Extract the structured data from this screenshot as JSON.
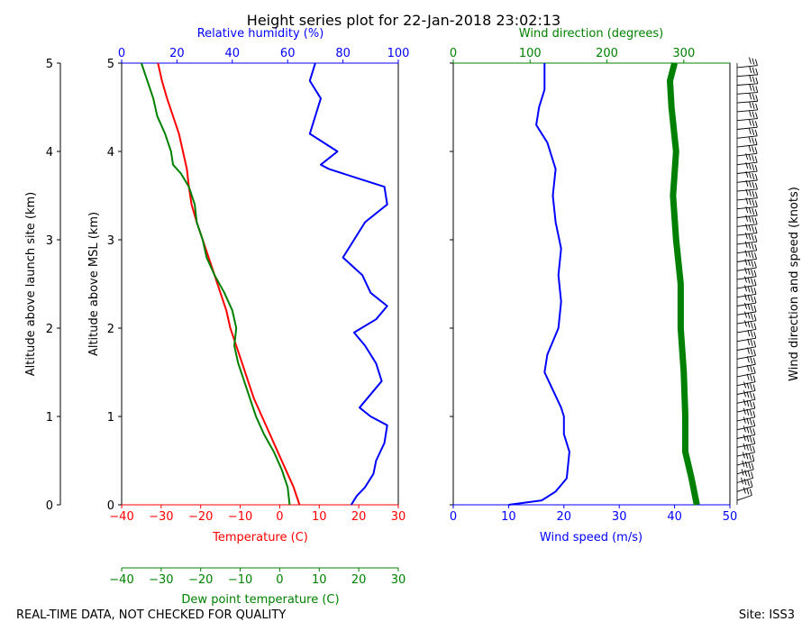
{
  "title": "Height series plot for 22-Jan-2018 23:02:13",
  "footer_left": "REAL-TIME DATA, NOT CHECKED FOR QUALITY",
  "footer_right": "Site: ISS3",
  "colors": {
    "temp": "#ff0000",
    "dew": "#008000",
    "rh": "#0000ff",
    "speed": "#0000ff",
    "dir": "#008000",
    "axis": "#000000"
  },
  "chart_data": [
    {
      "type": "line",
      "name": "thermo-panel",
      "ylabel_outer": "Altitude above launch site (km)",
      "ylabel_inner": "Altitude above MSL (km)",
      "ylim": [
        0,
        5
      ],
      "yticks": [
        "0",
        "1",
        "2",
        "3",
        "4",
        "5"
      ],
      "axes": {
        "temperature": {
          "label": "Temperature (C)",
          "lim": [
            -40,
            30
          ],
          "ticks": [
            "−40",
            "−30",
            "−20",
            "−10",
            "0",
            "10",
            "20",
            "30"
          ]
        },
        "dewpoint": {
          "label": "Dew point temperature (C)",
          "lim": [
            -40,
            30
          ],
          "ticks": [
            "−40",
            "−30",
            "−20",
            "−10",
            "0",
            "10",
            "20",
            "30"
          ]
        },
        "rh": {
          "label": "Relative humidity (%)",
          "lim": [
            0,
            100
          ],
          "ticks": [
            "0",
            "20",
            "40",
            "60",
            "80",
            "100"
          ]
        }
      },
      "series": [
        {
          "name": "Temperature",
          "axis": "temperature",
          "color": "#ff0000",
          "points": [
            [
              5.0,
              0
            ],
            [
              3.5,
              0.2
            ],
            [
              1.5,
              0.4
            ],
            [
              -0.5,
              0.6
            ],
            [
              -2.5,
              0.8
            ],
            [
              -4.5,
              1.0
            ],
            [
              -6.5,
              1.2
            ],
            [
              -8.0,
              1.4
            ],
            [
              -9.5,
              1.6
            ],
            [
              -11.0,
              1.8
            ],
            [
              -12.5,
              2.0
            ],
            [
              -13.5,
              2.2
            ],
            [
              -15.0,
              2.4
            ],
            [
              -16.5,
              2.6
            ],
            [
              -18.0,
              2.8
            ],
            [
              -19.5,
              3.0
            ],
            [
              -21.0,
              3.2
            ],
            [
              -22.3,
              3.4
            ],
            [
              -23.0,
              3.6
            ],
            [
              -23.5,
              3.8
            ],
            [
              -24.5,
              4.0
            ],
            [
              -25.5,
              4.2
            ],
            [
              -27.0,
              4.4
            ],
            [
              -28.5,
              4.6
            ],
            [
              -29.8,
              4.8
            ],
            [
              -30.8,
              5.0
            ]
          ]
        },
        {
          "name": "Dew point",
          "axis": "dewpoint",
          "color": "#008000",
          "points": [
            [
              2.5,
              0
            ],
            [
              2.0,
              0.2
            ],
            [
              0.5,
              0.4
            ],
            [
              -1.5,
              0.6
            ],
            [
              -4.0,
              0.8
            ],
            [
              -6.0,
              1.0
            ],
            [
              -7.5,
              1.2
            ],
            [
              -9.0,
              1.4
            ],
            [
              -10.5,
              1.6
            ],
            [
              -11.5,
              1.8
            ],
            [
              -11.0,
              2.0
            ],
            [
              -12.0,
              2.2
            ],
            [
              -14.0,
              2.4
            ],
            [
              -16.5,
              2.6
            ],
            [
              -18.5,
              2.8
            ],
            [
              -19.5,
              3.0
            ],
            [
              -21.0,
              3.2
            ],
            [
              -21.5,
              3.4
            ],
            [
              -23.0,
              3.6
            ],
            [
              -25.0,
              3.75
            ],
            [
              -27.0,
              3.85
            ],
            [
              -27.5,
              4.0
            ],
            [
              -29.0,
              4.2
            ],
            [
              -31.0,
              4.4
            ],
            [
              -32.0,
              4.6
            ],
            [
              -33.5,
              4.8
            ],
            [
              -35.0,
              5.0
            ]
          ]
        },
        {
          "name": "Relative humidity",
          "axis": "rh",
          "color": "#0000ff",
          "points": [
            [
              83,
              0
            ],
            [
              85,
              0.1
            ],
            [
              88,
              0.2
            ],
            [
              91,
              0.35
            ],
            [
              92,
              0.5
            ],
            [
              95,
              0.7
            ],
            [
              96,
              0.9
            ],
            [
              90,
              1.0
            ],
            [
              86,
              1.1
            ],
            [
              94,
              1.4
            ],
            [
              92,
              1.6
            ],
            [
              88,
              1.8
            ],
            [
              84,
              1.95
            ],
            [
              92,
              2.1
            ],
            [
              96,
              2.25
            ],
            [
              90,
              2.4
            ],
            [
              87,
              2.6
            ],
            [
              80,
              2.8
            ],
            [
              84,
              3.0
            ],
            [
              88,
              3.2
            ],
            [
              96,
              3.4
            ],
            [
              95,
              3.6
            ],
            [
              85,
              3.7
            ],
            [
              75,
              3.8
            ],
            [
              72,
              3.85
            ],
            [
              78,
              4.0
            ],
            [
              68,
              4.2
            ],
            [
              70,
              4.4
            ],
            [
              72,
              4.6
            ],
            [
              68,
              4.8
            ],
            [
              70,
              5.0
            ]
          ]
        }
      ]
    },
    {
      "type": "line",
      "name": "wind-panel",
      "ylim": [
        0,
        5
      ],
      "yticks": [
        "0",
        "1",
        "2",
        "3",
        "4",
        "5"
      ],
      "barb_label": "Wind direction and speed (knots)",
      "axes": {
        "speed": {
          "label": "Wind speed (m/s)",
          "lim": [
            0,
            50
          ],
          "ticks": [
            "0",
            "10",
            "20",
            "30",
            "40",
            "50"
          ]
        },
        "direction": {
          "label": "Wind direction (degrees)",
          "lim": [
            0,
            360
          ],
          "ticks": [
            "0",
            "100",
            "200",
            "300"
          ]
        }
      },
      "series": [
        {
          "name": "Wind speed",
          "axis": "speed",
          "color": "#0000ff",
          "points": [
            [
              10.0,
              0
            ],
            [
              16.0,
              0.05
            ],
            [
              18.5,
              0.15
            ],
            [
              20.5,
              0.3
            ],
            [
              21.0,
              0.6
            ],
            [
              20.0,
              0.8
            ],
            [
              20.0,
              1.0
            ],
            [
              19.5,
              1.1
            ],
            [
              18.0,
              1.3
            ],
            [
              16.5,
              1.5
            ],
            [
              17.0,
              1.7
            ],
            [
              19.0,
              2.0
            ],
            [
              19.5,
              2.3
            ],
            [
              19.0,
              2.6
            ],
            [
              19.5,
              2.9
            ],
            [
              18.5,
              3.2
            ],
            [
              18.0,
              3.5
            ],
            [
              18.5,
              3.8
            ],
            [
              17.0,
              4.1
            ],
            [
              15.0,
              4.3
            ],
            [
              15.5,
              4.5
            ],
            [
              16.5,
              4.7
            ],
            [
              16.5,
              5.0
            ]
          ]
        },
        {
          "name": "Wind direction",
          "axis": "direction",
          "color": "#008000",
          "points": [
            [
              317,
              0
            ],
            [
              310,
              0.3
            ],
            [
              302,
              0.6
            ],
            [
              302,
              1.0
            ],
            [
              300,
              1.5
            ],
            [
              296,
              2.0
            ],
            [
              296,
              2.5
            ],
            [
              290,
              3.0
            ],
            [
              286,
              3.5
            ],
            [
              290,
              4.0
            ],
            [
              284,
              4.5
            ],
            [
              282,
              4.8
            ],
            [
              288,
              5.0
            ]
          ]
        }
      ]
    }
  ]
}
